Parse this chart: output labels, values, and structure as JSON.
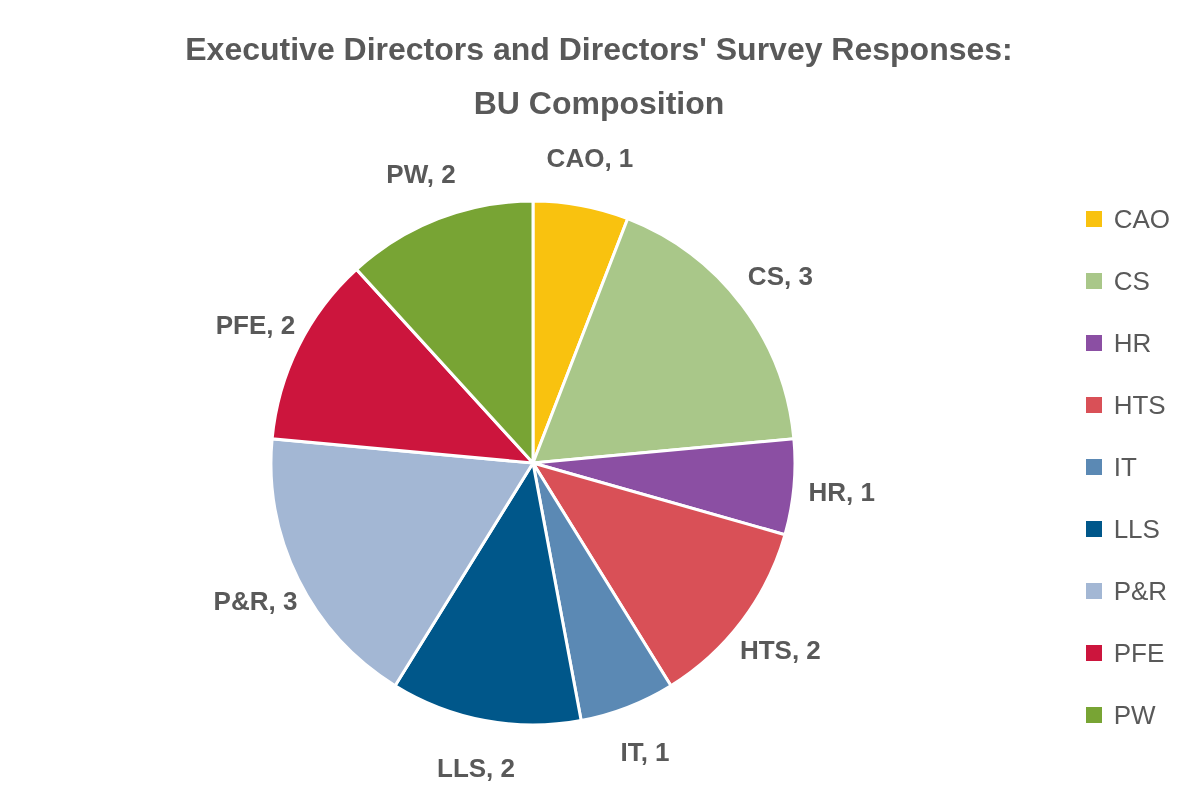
{
  "chart_data": {
    "type": "pie",
    "title": "Executive Directors and Directors' Survey Responses: BU Composition",
    "categories": [
      "CAO",
      "CS",
      "HR",
      "HTS",
      "IT",
      "LLS",
      "P&R",
      "PFE",
      "PW"
    ],
    "values": [
      1,
      3,
      1,
      2,
      1,
      2,
      3,
      2,
      2
    ],
    "colors": [
      "#f9c20f",
      "#a9c789",
      "#8b4fa3",
      "#d95057",
      "#5b89b4",
      "#00578a",
      "#a3b7d4",
      "#cc153d",
      "#78a434"
    ],
    "value_labels": [
      "CAO, 1",
      "CS, 3",
      "HR, 1",
      "HTS, 2",
      "IT, 1",
      "LLS, 2",
      "P&R, 3",
      "PFE, 2",
      "PW, 2"
    ],
    "legend": "right"
  }
}
